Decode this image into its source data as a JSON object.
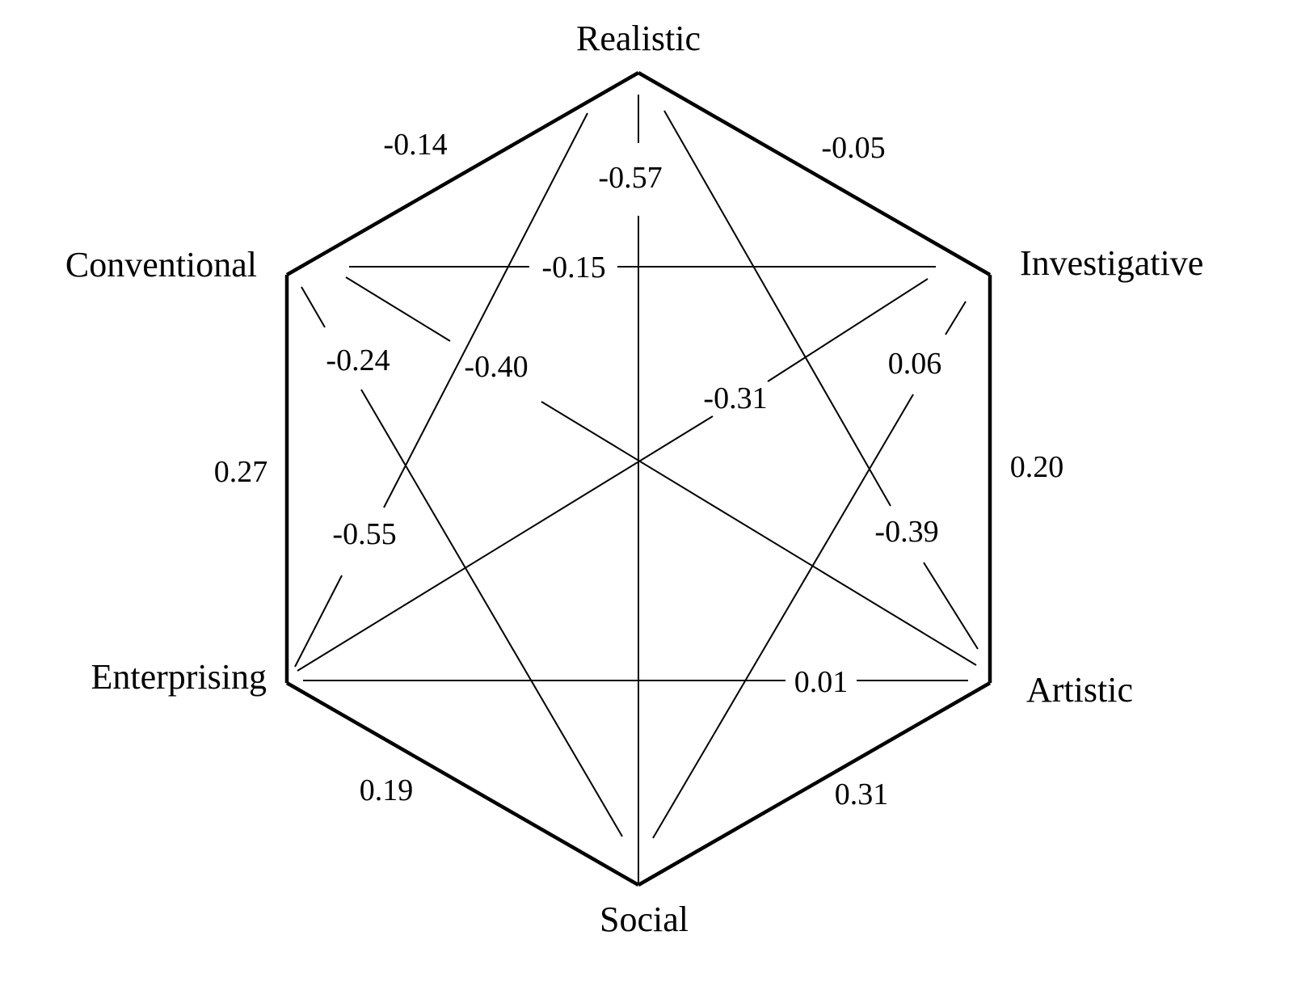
{
  "nodes": {
    "realistic": "Realistic",
    "investigative": "Investigative",
    "artistic": "Artistic",
    "social": "Social",
    "enterprising": "Enterprising",
    "conventional": "Conventional"
  },
  "correlations": {
    "realistic_investigative": "-0.05",
    "investigative_artistic": "0.20",
    "artistic_social": "0.31",
    "social_enterprising": "0.19",
    "enterprising_conventional": "0.27",
    "conventional_realistic": "-0.14",
    "realistic_social": "-0.57",
    "realistic_artistic": "-0.39",
    "realistic_enterprising": "-0.55",
    "investigative_conventional": "-0.15",
    "investigative_enterprising": "-0.31",
    "investigative_social": "0.06",
    "artistic_enterprising": "0.01",
    "artistic_conventional": "-0.40",
    "social_conventional": "-0.24"
  }
}
